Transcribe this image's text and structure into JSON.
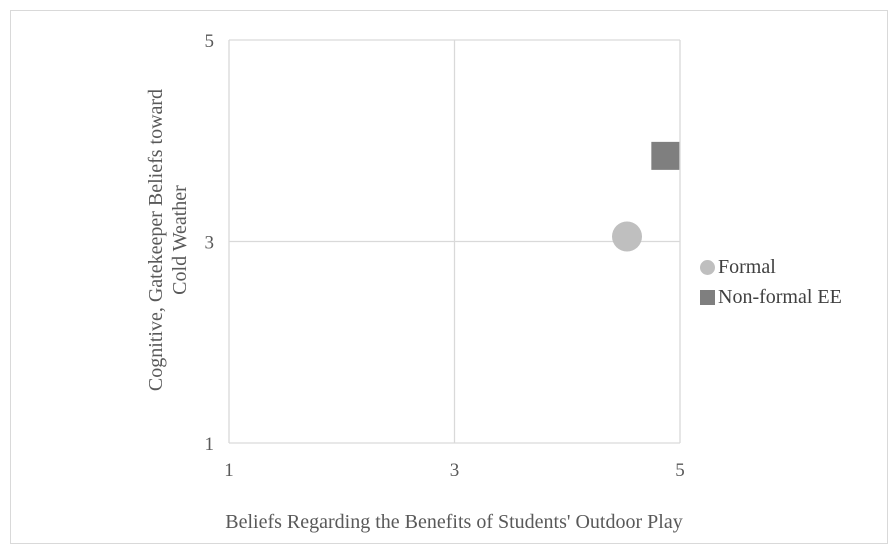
{
  "chart_data": {
    "type": "scatter",
    "xlabel": "Beliefs Regarding the Benefits of Students' Outdoor Play",
    "ylabel": [
      "Cognitive, Gatekeeper Beliefs toward",
      "Cold Weather"
    ],
    "xlim": [
      1,
      5
    ],
    "ylim": [
      1,
      5
    ],
    "xticks": [
      "1",
      "3",
      "5"
    ],
    "yticks": [
      "1",
      "3",
      "5"
    ],
    "grid": true,
    "legend_position": "right",
    "series": [
      {
        "name": "Formal",
        "marker": "circle",
        "color": "#bfbfbf",
        "x": 4.53,
        "y": 3.05
      },
      {
        "name": "Non-formal EE",
        "marker": "square",
        "color": "#7f7f7f",
        "x": 4.87,
        "y": 3.85
      }
    ]
  }
}
